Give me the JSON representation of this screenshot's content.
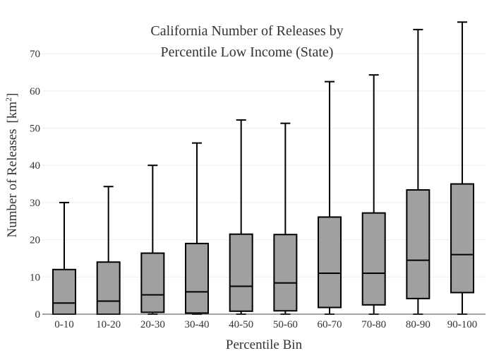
{
  "chart_data": {
    "type": "box",
    "title_lines": [
      "California Number of Releases by",
      "Percentile Low Income (State)"
    ],
    "xlabel": "Percentile Bin",
    "ylabel_text": "Number of Releases",
    "ylabel_unit": "[km",
    "ylabel_unit_sup": "2",
    "ylabel_unit_close": "]",
    "ylim": [
      0,
      80
    ],
    "yticks": [
      0,
      10,
      20,
      30,
      40,
      50,
      60,
      70
    ],
    "grid": true,
    "categories": [
      "0-10",
      "10-20",
      "20-30",
      "30-40",
      "40-50",
      "50-60",
      "60-70",
      "70-80",
      "80-90",
      "90-100"
    ],
    "boxes": [
      {
        "min": 0,
        "q1": 0,
        "median": 3,
        "q3": 12,
        "max": 30
      },
      {
        "min": 0,
        "q1": 0,
        "median": 3.5,
        "q3": 14,
        "max": 34.3
      },
      {
        "min": 0,
        "q1": 0.5,
        "median": 5.2,
        "q3": 16.4,
        "max": 40
      },
      {
        "min": 0,
        "q1": 0.3,
        "median": 6,
        "q3": 19,
        "max": 46
      },
      {
        "min": 0,
        "q1": 0.8,
        "median": 7.5,
        "q3": 21.5,
        "max": 52.2
      },
      {
        "min": 0,
        "q1": 0.9,
        "median": 8.4,
        "q3": 21.4,
        "max": 51.3
      },
      {
        "min": 0,
        "q1": 1.8,
        "median": 11,
        "q3": 26.1,
        "max": 62.5
      },
      {
        "min": 0,
        "q1": 2.5,
        "median": 11,
        "q3": 27.2,
        "max": 64.3
      },
      {
        "min": 0,
        "q1": 4.2,
        "median": 14.5,
        "q3": 33.4,
        "max": 76.5
      },
      {
        "min": 0,
        "q1": 5.8,
        "median": 16,
        "q3": 35,
        "max": 78.5
      }
    ],
    "colors": {
      "box_fill": "#a0a0a0",
      "box_stroke": "#000000"
    }
  }
}
